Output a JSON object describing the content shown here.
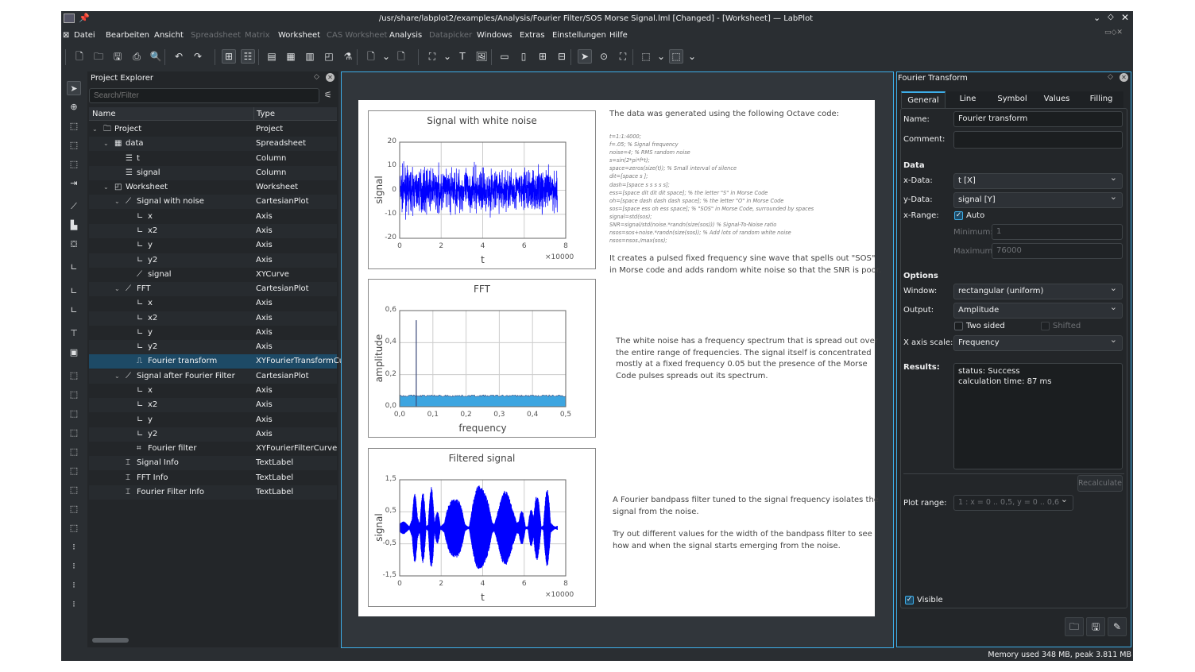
{
  "window": {
    "title": "/usr/share/labplot2/examples/Analysis/Fourier Filter/SOS Morse Signal.lml [Changed] - [Worksheet] — LabPlot"
  },
  "menu": [
    {
      "label": "Datei",
      "enabled": true
    },
    {
      "label": "Bearbeiten",
      "enabled": true
    },
    {
      "label": "Ansicht",
      "enabled": true
    },
    {
      "label": "Spreadsheet",
      "enabled": false
    },
    {
      "label": "Matrix",
      "enabled": false
    },
    {
      "label": "Worksheet",
      "enabled": true
    },
    {
      "label": "CAS Worksheet",
      "enabled": false
    },
    {
      "label": "Analysis",
      "enabled": true
    },
    {
      "label": "Datapicker",
      "enabled": false
    },
    {
      "label": "Windows",
      "enabled": true
    },
    {
      "label": "Extras",
      "enabled": true
    },
    {
      "label": "Einstellungen",
      "enabled": true
    },
    {
      "label": "Hilfe",
      "enabled": true
    }
  ],
  "project_explorer": {
    "title": "Project Explorer",
    "search_placeholder": "Search/Filter",
    "columns": [
      "Name",
      "Type"
    ],
    "rows": [
      {
        "name": "Project",
        "type": "Project",
        "depth": 0,
        "icon": "folder-icon",
        "expanded": true
      },
      {
        "name": "data",
        "type": "Spreadsheet",
        "depth": 1,
        "icon": "spreadsheet-icon",
        "expanded": true
      },
      {
        "name": "t",
        "type": "Column",
        "depth": 2,
        "icon": "column-icon"
      },
      {
        "name": "signal",
        "type": "Column",
        "depth": 2,
        "icon": "column-icon"
      },
      {
        "name": "Worksheet",
        "type": "Worksheet",
        "depth": 1,
        "icon": "worksheet-icon",
        "expanded": true
      },
      {
        "name": "Signal with noise",
        "type": "CartesianPlot",
        "depth": 2,
        "icon": "plot-icon",
        "expanded": true
      },
      {
        "name": "x",
        "type": "Axis",
        "depth": 3,
        "icon": "axis-icon"
      },
      {
        "name": "x2",
        "type": "Axis",
        "depth": 3,
        "icon": "axis-icon"
      },
      {
        "name": "y",
        "type": "Axis",
        "depth": 3,
        "icon": "axis-icon"
      },
      {
        "name": "y2",
        "type": "Axis",
        "depth": 3,
        "icon": "axis-icon"
      },
      {
        "name": "signal",
        "type": "XYCurve",
        "depth": 3,
        "icon": "curve-icon"
      },
      {
        "name": "FFT",
        "type": "CartesianPlot",
        "depth": 2,
        "icon": "plot-icon",
        "expanded": true
      },
      {
        "name": "x",
        "type": "Axis",
        "depth": 3,
        "icon": "axis-icon"
      },
      {
        "name": "x2",
        "type": "Axis",
        "depth": 3,
        "icon": "axis-icon"
      },
      {
        "name": "y",
        "type": "Axis",
        "depth": 3,
        "icon": "axis-icon"
      },
      {
        "name": "y2",
        "type": "Axis",
        "depth": 3,
        "icon": "axis-icon"
      },
      {
        "name": "Fourier transform",
        "type": "XYFourierTransformCur",
        "depth": 3,
        "icon": "fourier-transform-icon",
        "selected": true
      },
      {
        "name": "Signal after Fourier Filter",
        "type": "CartesianPlot",
        "depth": 2,
        "icon": "plot-icon",
        "expanded": true
      },
      {
        "name": "x",
        "type": "Axis",
        "depth": 3,
        "icon": "axis-icon"
      },
      {
        "name": "x2",
        "type": "Axis",
        "depth": 3,
        "icon": "axis-icon"
      },
      {
        "name": "y",
        "type": "Axis",
        "depth": 3,
        "icon": "axis-icon"
      },
      {
        "name": "y2",
        "type": "Axis",
        "depth": 3,
        "icon": "axis-icon"
      },
      {
        "name": "Fourier filter",
        "type": "XYFourierFilterCurve",
        "depth": 3,
        "icon": "fourier-filter-icon"
      },
      {
        "name": "Signal Info",
        "type": "TextLabel",
        "depth": 2,
        "icon": "text-label-icon"
      },
      {
        "name": "FFT Info",
        "type": "TextLabel",
        "depth": 2,
        "icon": "text-label-icon"
      },
      {
        "name": "Fourier Filter Info",
        "type": "TextLabel",
        "depth": 2,
        "icon": "text-label-icon"
      }
    ]
  },
  "worksheet": {
    "plots": [
      {
        "title": "Signal with white noise",
        "xlabel": "t",
        "ylabel": "signal",
        "xticks": [
          "0",
          "2",
          "4",
          "6",
          "8"
        ],
        "yticks": [
          "20",
          "10",
          "0",
          "-10",
          "-20"
        ],
        "xrange": [
          0,
          8
        ],
        "yrange": [
          -20,
          20
        ],
        "x_multiplier": "×10000",
        "color": "#0000ff"
      },
      {
        "title": "FFT",
        "xlabel": "frequency",
        "ylabel": "amplitude",
        "xticks": [
          "0,0",
          "0,1",
          "0,2",
          "0,3",
          "0,4",
          "0,5"
        ],
        "yticks": [
          "0,6",
          "0,4",
          "0,2",
          "0,0"
        ],
        "xrange": [
          0,
          0.5
        ],
        "yrange": [
          0,
          0.6
        ],
        "peak": {
          "frequency": 0.05,
          "amplitude": 0.54
        },
        "noise_floor": 0.07,
        "color": "#3da5e0"
      },
      {
        "title": "Filtered signal",
        "xlabel": "t",
        "ylabel": "signal",
        "xticks": [
          "0",
          "2",
          "4",
          "6",
          "8"
        ],
        "yticks": [
          "1,5",
          "0,5",
          "-0,5",
          "-1,5"
        ],
        "xrange": [
          0,
          8
        ],
        "yrange": [
          -1.5,
          1.5
        ],
        "x_multiplier": "×10000",
        "color": "#0000ff"
      }
    ],
    "intro": "The data was generated using the following Octave code:",
    "code": [
      "t=1:1:4000;",
      "f=.05; % Signal frequency",
      "noise=4; % RMS random noise",
      "s=sin(2*pi*f*t);",
      "space=zeros(size(t)); % Small interval of silence",
      "dit=[space s ];",
      "dash=[space s s s s s];",
      "ess=[space dit dit dit space]; % the letter \"S\" in Morse Code",
      "oh=[space dash dash dash space];  % the letter \"O\" in Morse Code",
      "sos=[space ess oh ess space];  % \"SOS\" in Morse Code, surrounded by spaces",
      "signal=std(sos);",
      "SNR=signal/std(noise.*randn(size(sos))) % Signal-To-Noise ratio",
      "nsos=sos+noise.*randn(size(sos));  % Add lots of random white noise",
      "nsos=nsos./max(sos);"
    ],
    "text1": [
      "It creates a pulsed fixed frequency sine wave that spells out \"SOS\"",
      "in Morse code and adds random white noise so that the SNR is poor."
    ],
    "text2": [
      "The white noise has a frequency spectrum that is spread out over",
      "the entire range of frequencies. The signal itself is concentrated",
      "mostly at a fixed frequency 0.05 but the presence of the Morse",
      "Code pulses spreads out its spectrum."
    ],
    "text3": [
      "A Fourier bandpass filter tuned to the signal frequency isolates the",
      "signal from the noise."
    ],
    "text4": [
      "Try out different values for the width of the bandpass filter to see",
      "how and when the signal starts emerging from the noise."
    ]
  },
  "properties": {
    "title": "Fourier Transform",
    "tabs": [
      "General",
      "Line",
      "Symbol",
      "Values",
      "Filling"
    ],
    "active_tab": "General",
    "name_label": "Name:",
    "name_value": "Fourier transform",
    "comment_label": "Comment:",
    "comment_value": "",
    "data_heading": "Data",
    "xdata_label": "x-Data:",
    "xdata_value": "t [X]",
    "ydata_label": "y-Data:",
    "ydata_value": "signal [Y]",
    "xrange_label": "x-Range:",
    "auto_label": "Auto",
    "auto_checked": true,
    "min_label": "Minimum:",
    "min_value": "1",
    "max_label": "Maximum:",
    "max_value": "76000",
    "options_heading": "Options",
    "window_label": "Window:",
    "window_value": "rectangular (uniform)",
    "output_label": "Output:",
    "output_value": "Amplitude",
    "two_sided_label": "Two sided",
    "two_sided_checked": false,
    "shifted_label": "Shifted",
    "shifted_checked": false,
    "xscale_label": "X axis scale:",
    "xscale_value": "Frequency",
    "results_label": "Results:",
    "results": [
      "status: Success",
      "calculation time: 87 ms"
    ],
    "recalculate_label": "Recalculate",
    "plot_range_label": "Plot range:",
    "plot_range_value": "1 : x = 0 .. 0,5, y = 0 .. 0,6",
    "visible_label": "Visible",
    "visible_checked": true
  },
  "status": {
    "memory": "Memory used 348 MB, peak 3.811 MB"
  },
  "colors": {
    "accent": "#3daee9",
    "window_bg": "#2a2e32",
    "panel_bg": "#232629",
    "selection": "#1d4a66",
    "curve": "#0000ff",
    "fft_fill": "#3da5e0"
  }
}
